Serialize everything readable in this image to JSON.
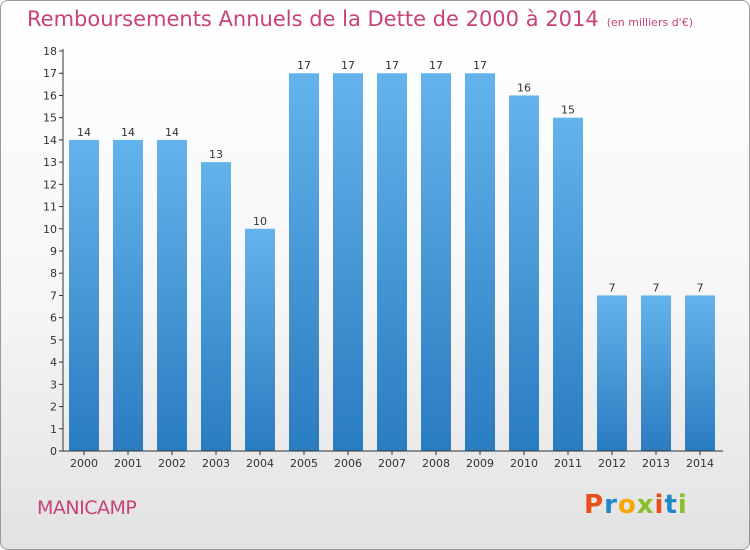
{
  "title": "Remboursements Annuels de la Dette de 2000 à 2014",
  "unit_note": "(en milliers d'€)",
  "commune": "MANICAMP",
  "brand": "Proxiti",
  "colors": {
    "title": "#c8417a",
    "bar_top": "#63b3ec",
    "bar_bottom": "#2a7cc0",
    "axis": "#333333",
    "brand_letters": [
      "#e94e1b",
      "#1e88c8",
      "#f7a600",
      "#8bbf2a",
      "#e94e1b",
      "#1e88c8",
      "#8bbf2a"
    ]
  },
  "chart_data": {
    "type": "bar",
    "title": "Remboursements Annuels de la Dette de 2000 à 2014",
    "xlabel": "",
    "ylabel": "",
    "ylim": [
      0,
      18
    ],
    "yticks": [
      0,
      1,
      2,
      3,
      4,
      5,
      6,
      7,
      8,
      9,
      10,
      11,
      12,
      13,
      14,
      15,
      16,
      17,
      18
    ],
    "grid": false,
    "categories": [
      "2000",
      "2001",
      "2002",
      "2003",
      "2004",
      "2005",
      "2006",
      "2007",
      "2008",
      "2009",
      "2010",
      "2011",
      "2012",
      "2013",
      "2014"
    ],
    "values": [
      14,
      14,
      14,
      13,
      10,
      17,
      17,
      17,
      17,
      17,
      16,
      15,
      7,
      7,
      7
    ]
  }
}
